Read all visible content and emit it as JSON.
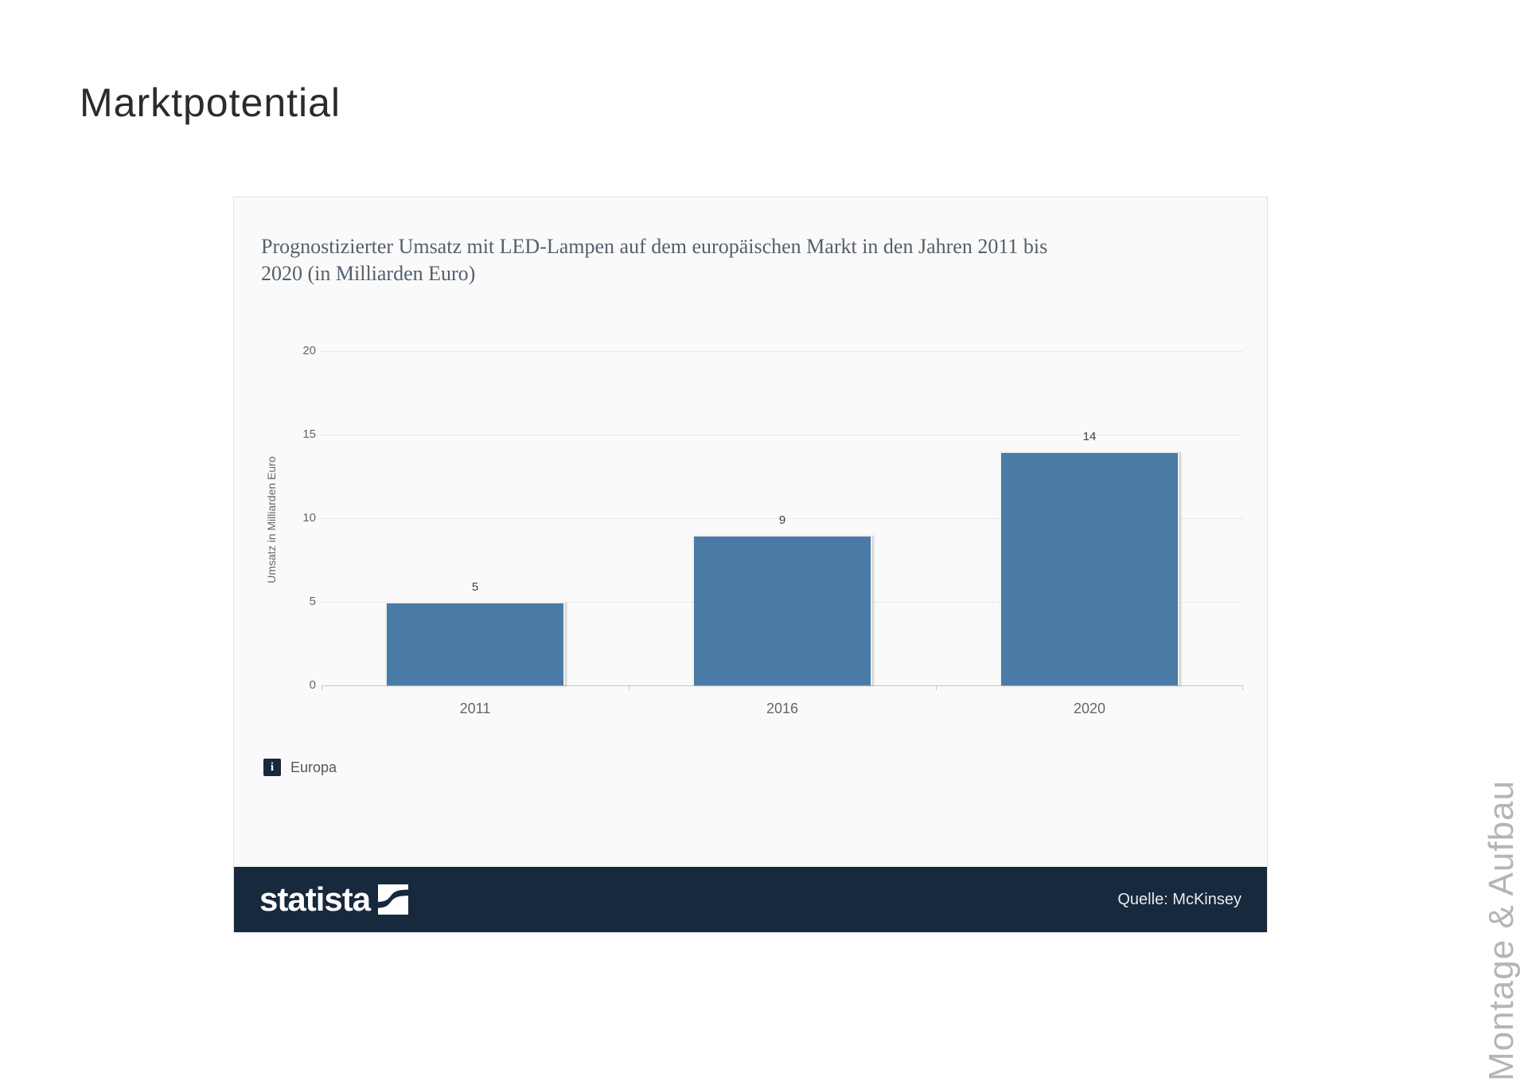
{
  "page": {
    "title": "Marktpotential",
    "side_note": "Montage & Aufbau"
  },
  "chart_data": {
    "type": "bar",
    "title": "Prognostizierter Umsatz mit LED-Lampen auf dem europäischen Markt in den Jahren 2011 bis 2020 (in Milliarden Euro)",
    "categories": [
      "2011",
      "2016",
      "2020"
    ],
    "values": [
      5,
      9,
      14
    ],
    "ylabel": "Umsatz in Milliarden Euro",
    "yticks": [
      20,
      15,
      10,
      5,
      0
    ],
    "ylim": [
      0,
      20
    ],
    "grid": "horizontal-dotted",
    "legend_position": "bottom-left",
    "legend": {
      "icon": "info-icon",
      "label": "Europa"
    },
    "bar_color": "#4a7ba7",
    "footer_color": "#16293d"
  },
  "footer": {
    "brand": "statista",
    "source": "Quelle: McKinsey"
  }
}
